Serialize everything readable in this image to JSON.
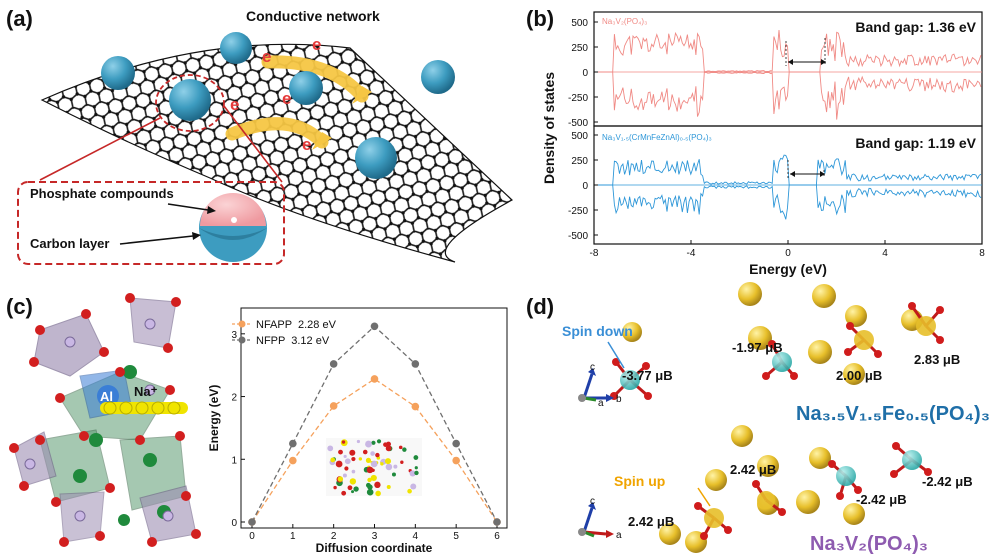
{
  "panel_a": {
    "label": "(a)",
    "title": "Conductive network",
    "callout_phosphate": "Phosphate compounds",
    "callout_carbon": "Carbon layer",
    "electron_label": "e",
    "electron_sup": "−",
    "colors": {
      "sphere": "#3d9cc0",
      "sheet": "#1a1a1a",
      "arrow": "#f6c643",
      "electron": "#e53b3b",
      "dash": "#c62828",
      "core": "#f3a4a8"
    }
  },
  "panel_b": {
    "label": "(b)",
    "ylabel": "Density of states",
    "xlabel": "Energy (eV)",
    "top": {
      "name": "Na₃V₂(PO₄)₃",
      "gap_text": "Band gap: 1.36 eV",
      "color": "#f08a85"
    },
    "bottom": {
      "name": "Na₃V₁.₅(CrMnFeZnAl)₀.₅(PO₄)₃",
      "gap_text": "Band gap: 1.19 eV",
      "color": "#2e97d8"
    },
    "yticks": [
      "500",
      "250",
      "0",
      "-250",
      "-500"
    ],
    "xticks": [
      "-8",
      "-4",
      "0",
      "4",
      "8"
    ]
  },
  "panel_c": {
    "label": "(c)",
    "atom_al": "Al",
    "atom_na": "Na⁺",
    "chart_data": {
      "type": "line",
      "xlabel": "Diffusion coordinate",
      "ylabel": "Energy (eV)",
      "x": [
        0,
        1,
        2,
        3,
        4,
        5,
        6
      ],
      "xlim": [
        0,
        6
      ],
      "ylim": [
        0,
        3.3
      ],
      "yticks": [
        0,
        1,
        2,
        3
      ],
      "series": [
        {
          "name": "NFAPP  2.28 eV",
          "color": "#f5a15c",
          "values": [
            0,
            0.98,
            1.85,
            2.28,
            1.84,
            0.98,
            0
          ]
        },
        {
          "name": "NFPP  3.12 eV",
          "color": "#6f6f6f",
          "values": [
            0,
            1.25,
            2.52,
            3.12,
            2.52,
            1.25,
            0
          ]
        }
      ]
    }
  },
  "panel_d": {
    "label": "(d)",
    "spin_down": "Spin down",
    "spin_up": "Spin up",
    "formula_top": "Na₃.₅V₁.₅Fe₀.₅(PO₄)₃",
    "formula_bottom": "Na₃V₂(PO₄)₃",
    "axis_c": "c",
    "axis_a": "a",
    "axis_b": "b",
    "moments": {
      "m1": "-1.97 μB",
      "m2": "-3.77 μB",
      "m3": "2.00 μB",
      "m4": "2.83 μB",
      "m5": "2.42 μB",
      "m6": "-2.42 μB",
      "m7": "2.42 μB",
      "m8": "-2.42 μB"
    },
    "colors": {
      "spin_down": "#3a8fd6",
      "spin_up": "#f0a400",
      "formula_top": "#1f6fa8",
      "formula_bottom": "#8e5bb0",
      "na": "#e7bf2a",
      "o": "#d01c1c",
      "v": "#2bb6b0"
    }
  }
}
